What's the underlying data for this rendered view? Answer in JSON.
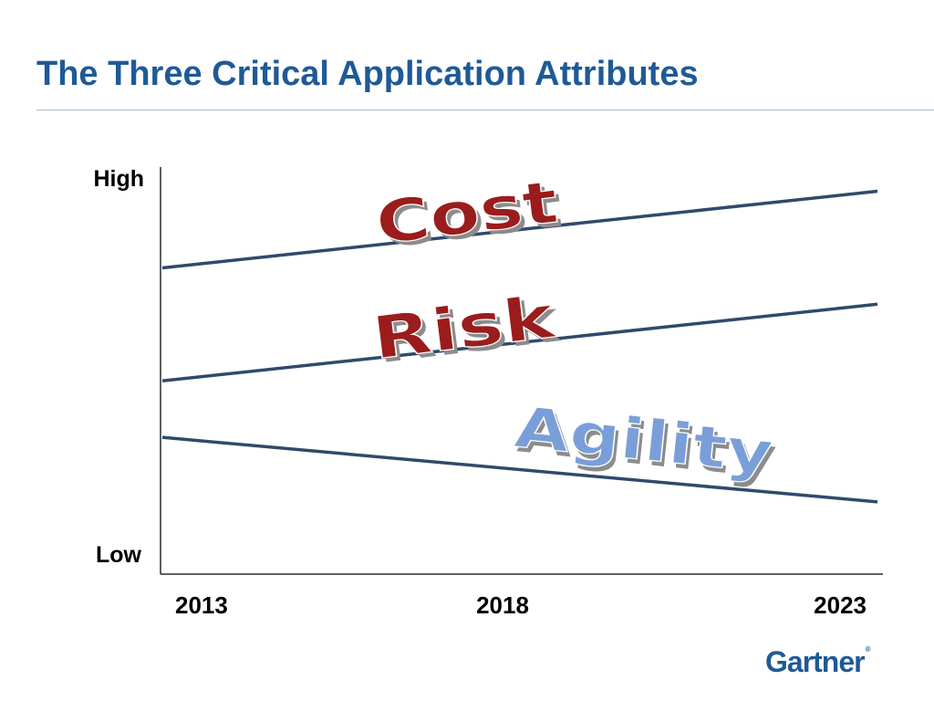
{
  "slide": {
    "title": "The Three Critical Application Attributes",
    "logo": "Gartner",
    "logo_mark": "®"
  },
  "chart_data": {
    "type": "line",
    "title": "",
    "x_ticks": [
      "2013",
      "2018",
      "2023"
    ],
    "xlim": [
      2013,
      2023
    ],
    "y_labels": {
      "high": "High",
      "low": "Low"
    },
    "ylim": [
      0,
      100
    ],
    "grid": false,
    "series": [
      {
        "name": "Cost",
        "x": [
          2013,
          2023
        ],
        "y": [
          75,
          94
        ],
        "label_color": "#9b1c1c"
      },
      {
        "name": "Risk",
        "x": [
          2013,
          2023
        ],
        "y": [
          47,
          66
        ],
        "label_color": "#9b1c1c"
      },
      {
        "name": "Agility",
        "x": [
          2013,
          2023
        ],
        "y": [
          33,
          17
        ],
        "label_color": "#7a9fd8"
      }
    ],
    "line_color": "#2f4a6b"
  }
}
